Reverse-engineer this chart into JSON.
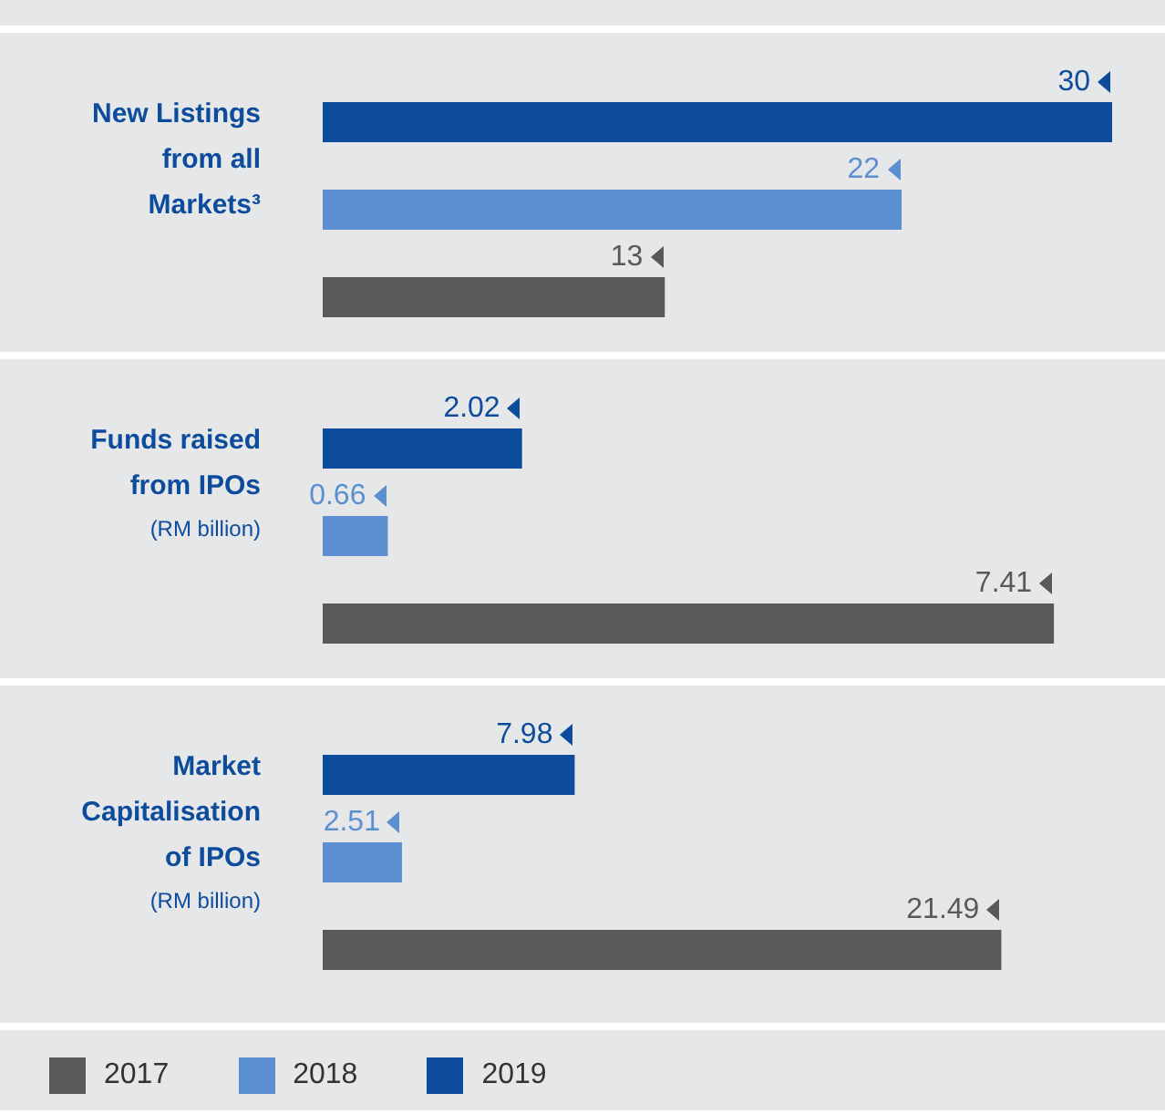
{
  "chart_data": [
    {
      "type": "bar",
      "orientation": "horizontal",
      "categories": [
        null,
        null,
        null
      ],
      "ylabel": "New Listings from all Markets³",
      "values": [
        30,
        22,
        13
      ],
      "colors": [
        "#0d4c9c",
        "#5b8fd0",
        "#58595b"
      ],
      "tick_labels": false,
      "data_labels": true
    },
    {
      "type": "bar",
      "orientation": "horizontal",
      "categories": [
        null,
        null,
        null
      ],
      "ylabel": "Funds raised from IPOs",
      "annotations": [
        "(RM billion)"
      ],
      "values": [
        2.02,
        0.66,
        7.41
      ],
      "colors": [
        "#0d4c9c",
        "#5b8fd0",
        "#58595b"
      ],
      "tick_labels": false,
      "data_labels": true
    },
    {
      "type": "bar",
      "orientation": "horizontal",
      "categories": [
        null,
        null,
        null
      ],
      "ylabel": "Market Capitalisation of IPOs",
      "annotations": [
        "(RM billion)",
        "2017",
        "2018",
        "2019"
      ],
      "values": [
        7.98,
        2.51,
        21.49
      ],
      "colors": [
        "#0d4c9c",
        "#5b8fd0",
        "#58595b"
      ],
      "tick_labels": false,
      "data_labels": true
    }
  ]
}
